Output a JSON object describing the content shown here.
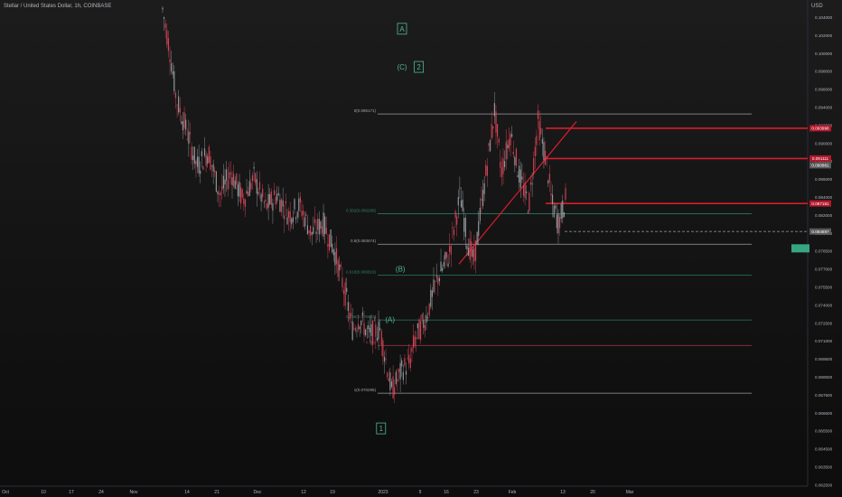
{
  "header": {
    "symbol_title": "Stellar / United States Dollar, 1h, COINBASE",
    "currency": "USD"
  },
  "colors": {
    "background": "#131313",
    "up_candle": "#9fa3a8",
    "down_candle": "#e0475a",
    "fib_line_green": "#2e8b74",
    "fib_line_white": "#b2b5be",
    "fib_line_red": "#b0324b",
    "wave_label_green": "#4fb69a",
    "resistance_red": "#d81c2b",
    "price_box_red": "#b2182b",
    "price_box_gray": "#5a5a5a",
    "current_price_box": "#36a682"
  },
  "chart_data": {
    "type": "candlestick",
    "title": "Stellar / United States Dollar, 1h, COINBASE",
    "xlabel": "",
    "ylabel": "USD",
    "ylim": [
      0.0625,
      0.105
    ],
    "grid": false,
    "x_ticks": [
      "Oct",
      "10",
      "17",
      "24",
      "Nov",
      "14",
      "21",
      "Dec",
      "12",
      "19",
      "2023",
      "9",
      "16",
      "23",
      "Feb",
      "13",
      "20",
      "Mar"
    ],
    "y_ticks": [
      "0.104000",
      "0.102000",
      "0.100000",
      "0.098000",
      "0.096000",
      "0.094000",
      "0.092000",
      "0.090000",
      "0.088000",
      "0.086000",
      "0.084000",
      "0.082000",
      "0.080000",
      "0.078500",
      "0.077000",
      "0.075500",
      "0.074000",
      "0.072500",
      "0.071000",
      "0.069500",
      "0.068500",
      "0.067500",
      "0.066500",
      "0.065500",
      "0.064500",
      "0.063500",
      "0.062500"
    ],
    "price_path": [
      [
        0,
        0.1045
      ],
      [
        0.3,
        0.101
      ],
      [
        0.6,
        0.0965
      ],
      [
        1.0,
        0.094
      ],
      [
        1.5,
        0.0905
      ],
      [
        2.0,
        0.0918
      ],
      [
        2.5,
        0.088
      ],
      [
        3.0,
        0.09
      ],
      [
        3.5,
        0.0875
      ],
      [
        4.0,
        0.0895
      ],
      [
        4.5,
        0.0868
      ],
      [
        5.0,
        0.088
      ],
      [
        5.5,
        0.0862
      ],
      [
        6.0,
        0.087
      ],
      [
        6.5,
        0.0845
      ],
      [
        7.0,
        0.0855
      ],
      [
        7.5,
        0.083
      ],
      [
        8.0,
        0.079
      ],
      [
        8.3,
        0.076
      ],
      [
        8.6,
        0.077
      ],
      [
        9.0,
        0.0755
      ],
      [
        9.5,
        0.076
      ],
      [
        10.0,
        0.0705
      ],
      [
        10.5,
        0.0725
      ],
      [
        10.8,
        0.073
      ],
      [
        11.0,
        0.075
      ],
      [
        11.5,
        0.077
      ],
      [
        12.0,
        0.0805
      ],
      [
        12.5,
        0.0825
      ],
      [
        13.0,
        0.088
      ],
      [
        13.3,
        0.084
      ],
      [
        13.6,
        0.082
      ],
      [
        14.0,
        0.088
      ],
      [
        14.5,
        0.0955
      ],
      [
        14.8,
        0.09
      ],
      [
        15.2,
        0.0935
      ],
      [
        15.6,
        0.0895
      ],
      [
        16.0,
        0.087
      ],
      [
        16.4,
        0.0945
      ],
      [
        16.8,
        0.0905
      ],
      [
        17.0,
        0.0872
      ],
      [
        17.3,
        0.0855
      ],
      [
        17.6,
        0.0875
      ]
    ],
    "fib_levels": [
      {
        "label": "0(0.095171)",
        "price": 0.09517,
        "color": "white"
      },
      {
        "label": "0.382(0.086288)",
        "price": 0.08629,
        "color": "green"
      },
      {
        "label": "0.5(0.083574)",
        "price": 0.08357,
        "color": "white"
      },
      {
        "label": "0.618(0.080819)",
        "price": 0.08082,
        "color": "green"
      },
      {
        "label": "0.786(0.076822)",
        "price": 0.07682,
        "color": "green"
      },
      {
        "label": "0.886",
        "price": 0.07455,
        "color": "red"
      },
      {
        "label": "1(0.070295)",
        "price": 0.0703,
        "color": "white"
      }
    ],
    "wave_labels": [
      {
        "text": "A",
        "x": 10.0,
        "y": 0.1026,
        "boxed": true,
        "color": "green"
      },
      {
        "text": "(C)",
        "x": 10.0,
        "y": 0.0992,
        "boxed": false,
        "color": "green"
      },
      {
        "text": "2",
        "x": 11.6,
        "y": 0.0992,
        "boxed": true,
        "color": "green"
      },
      {
        "text": "1",
        "x": 8.0,
        "y": 0.067,
        "boxed": true,
        "color": "green"
      },
      {
        "text": "(A)",
        "x": 8.85,
        "y": 0.0767,
        "boxed": false,
        "color": "green"
      },
      {
        "text": "(B)",
        "x": 9.85,
        "y": 0.0812,
        "boxed": false,
        "color": "green"
      }
    ],
    "price_boxes": [
      {
        "text": "0.093998",
        "y": 0.0939,
        "color": "red"
      },
      {
        "text": "0.091111",
        "y": 0.0912,
        "color": "red"
      },
      {
        "text": "0.090881",
        "y": 0.0906,
        "color": "gray"
      },
      {
        "text": "0.087181",
        "y": 0.0872,
        "color": "red"
      },
      {
        "text": "0.084697",
        "y": 0.0847,
        "color": "gray"
      },
      {
        "text": "",
        "y": 0.0832,
        "color": "green"
      }
    ]
  }
}
